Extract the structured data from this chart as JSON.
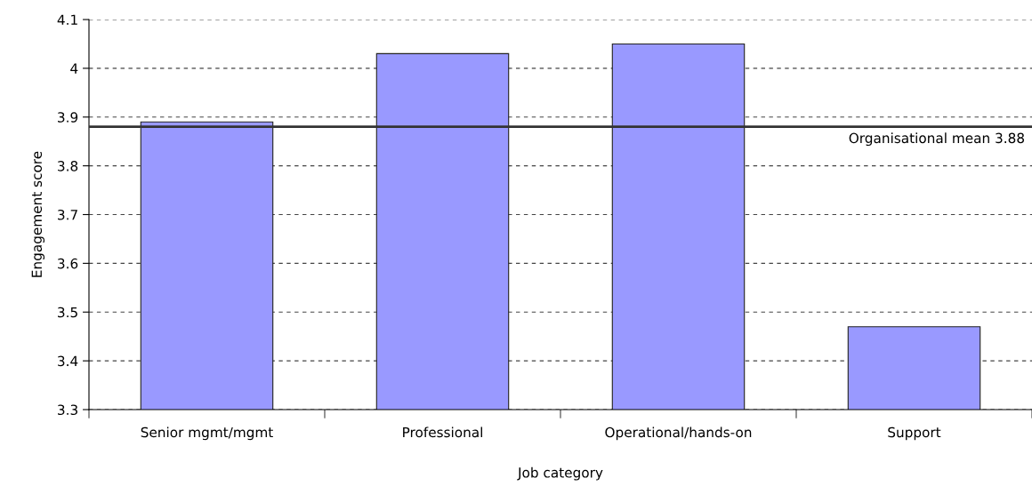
{
  "chart_data": {
    "type": "bar",
    "xlabel": "Job category",
    "ylabel": "Engagement score",
    "categories": [
      "Senior mgmt/mgmt",
      "Professional",
      "Operational/hands-on",
      "Support"
    ],
    "values": [
      3.89,
      4.03,
      4.05,
      3.47
    ],
    "color": "#9999ff",
    "ylim": [
      3.3,
      4.1
    ],
    "yticks": [
      3.3,
      3.4,
      3.5,
      3.6,
      3.7,
      3.8,
      3.9,
      {
        "value": 4.0,
        "label": "4"
      },
      4.1
    ],
    "grid": "y",
    "legend": false,
    "ref_lines": [
      {
        "axis": "y",
        "value": 3.88,
        "label": "Organisational mean 3.88",
        "color": "#333333",
        "line_style": "solid"
      }
    ]
  }
}
